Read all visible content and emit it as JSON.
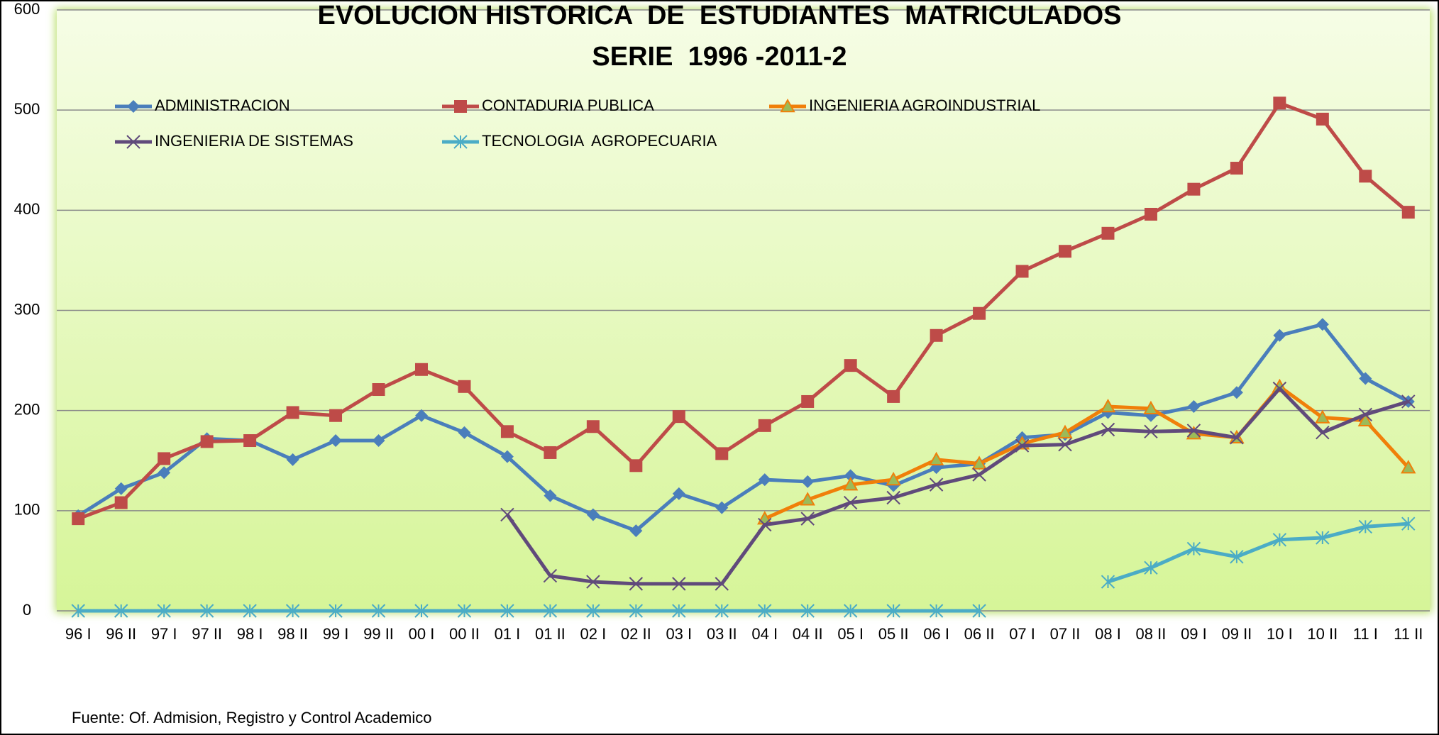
{
  "chart_data": {
    "type": "line",
    "title": "EVOLUCION HISTORICA  DE  ESTUDIANTES  MATRICULADOS",
    "subtitle": "SERIE  1996 -2011-2",
    "source": "Fuente: Of. Admision, Registro y Control Academico",
    "categories": [
      "96 I",
      "96 II",
      "97 I",
      "97 II",
      "98 I",
      "98 II",
      "99 I",
      "99 II",
      "00 I",
      "00 II",
      "01 I",
      "01 II",
      "02 I",
      "02 II",
      "03 I",
      "03 II",
      "04 I",
      "04 II",
      "05 I",
      "05 II",
      "06 I",
      "06 II",
      "07 I",
      "07 II",
      "08 I",
      "08 II",
      "09 I",
      "09 II",
      "10 I",
      "10 II",
      "11 I",
      "11 II"
    ],
    "series": [
      {
        "name": "ADMINISTRACION",
        "color": "#4a7ebb",
        "marker": "diamond",
        "values": [
          95,
          122,
          138,
          172,
          170,
          151,
          170,
          170,
          195,
          178,
          154,
          115,
          96,
          80,
          117,
          103,
          131,
          129,
          135,
          125,
          143,
          147,
          173,
          176,
          198,
          195,
          204,
          218,
          275,
          286,
          232,
          209
        ]
      },
      {
        "name": "CONTADURIA PUBLICA",
        "color": "#be4b48",
        "marker": "square",
        "values": [
          92,
          108,
          152,
          169,
          170,
          198,
          195,
          221,
          241,
          224,
          179,
          158,
          184,
          145,
          194,
          157,
          185,
          209,
          245,
          214,
          275,
          297,
          339,
          359,
          377,
          396,
          421,
          442,
          507,
          491,
          434,
          398
        ]
      },
      {
        "name": "INGENIERIA AGROINDUSTRIAL",
        "color": "#f07f09",
        "marker": "triangle",
        "values": [
          null,
          null,
          null,
          null,
          null,
          null,
          null,
          null,
          null,
          null,
          null,
          null,
          null,
          null,
          null,
          null,
          92,
          111,
          126,
          131,
          151,
          147,
          167,
          178,
          204,
          202,
          177,
          173,
          224,
          193,
          190,
          143
        ]
      },
      {
        "name": "INGENIERIA DE SISTEMAS",
        "color": "#604a7b",
        "marker": "x",
        "values": [
          null,
          null,
          null,
          null,
          null,
          null,
          null,
          null,
          null,
          null,
          96,
          35,
          29,
          27,
          27,
          27,
          86,
          92,
          108,
          113,
          126,
          136,
          165,
          166,
          181,
          179,
          180,
          173,
          222,
          178,
          196,
          209
        ]
      },
      {
        "name": "TECNOLOGIA  AGROPECUARIA",
        "color": "#4bacc6",
        "marker": "star",
        "values": [
          0,
          0,
          0,
          0,
          0,
          0,
          0,
          0,
          0,
          0,
          0,
          0,
          0,
          0,
          0,
          0,
          0,
          0,
          0,
          0,
          0,
          0,
          null,
          null,
          29,
          43,
          62,
          54,
          71,
          73,
          84,
          87
        ]
      }
    ],
    "ylim": [
      0,
      600
    ],
    "yticks": [
      0,
      100,
      200,
      300,
      400,
      500,
      600
    ],
    "grid": true
  }
}
